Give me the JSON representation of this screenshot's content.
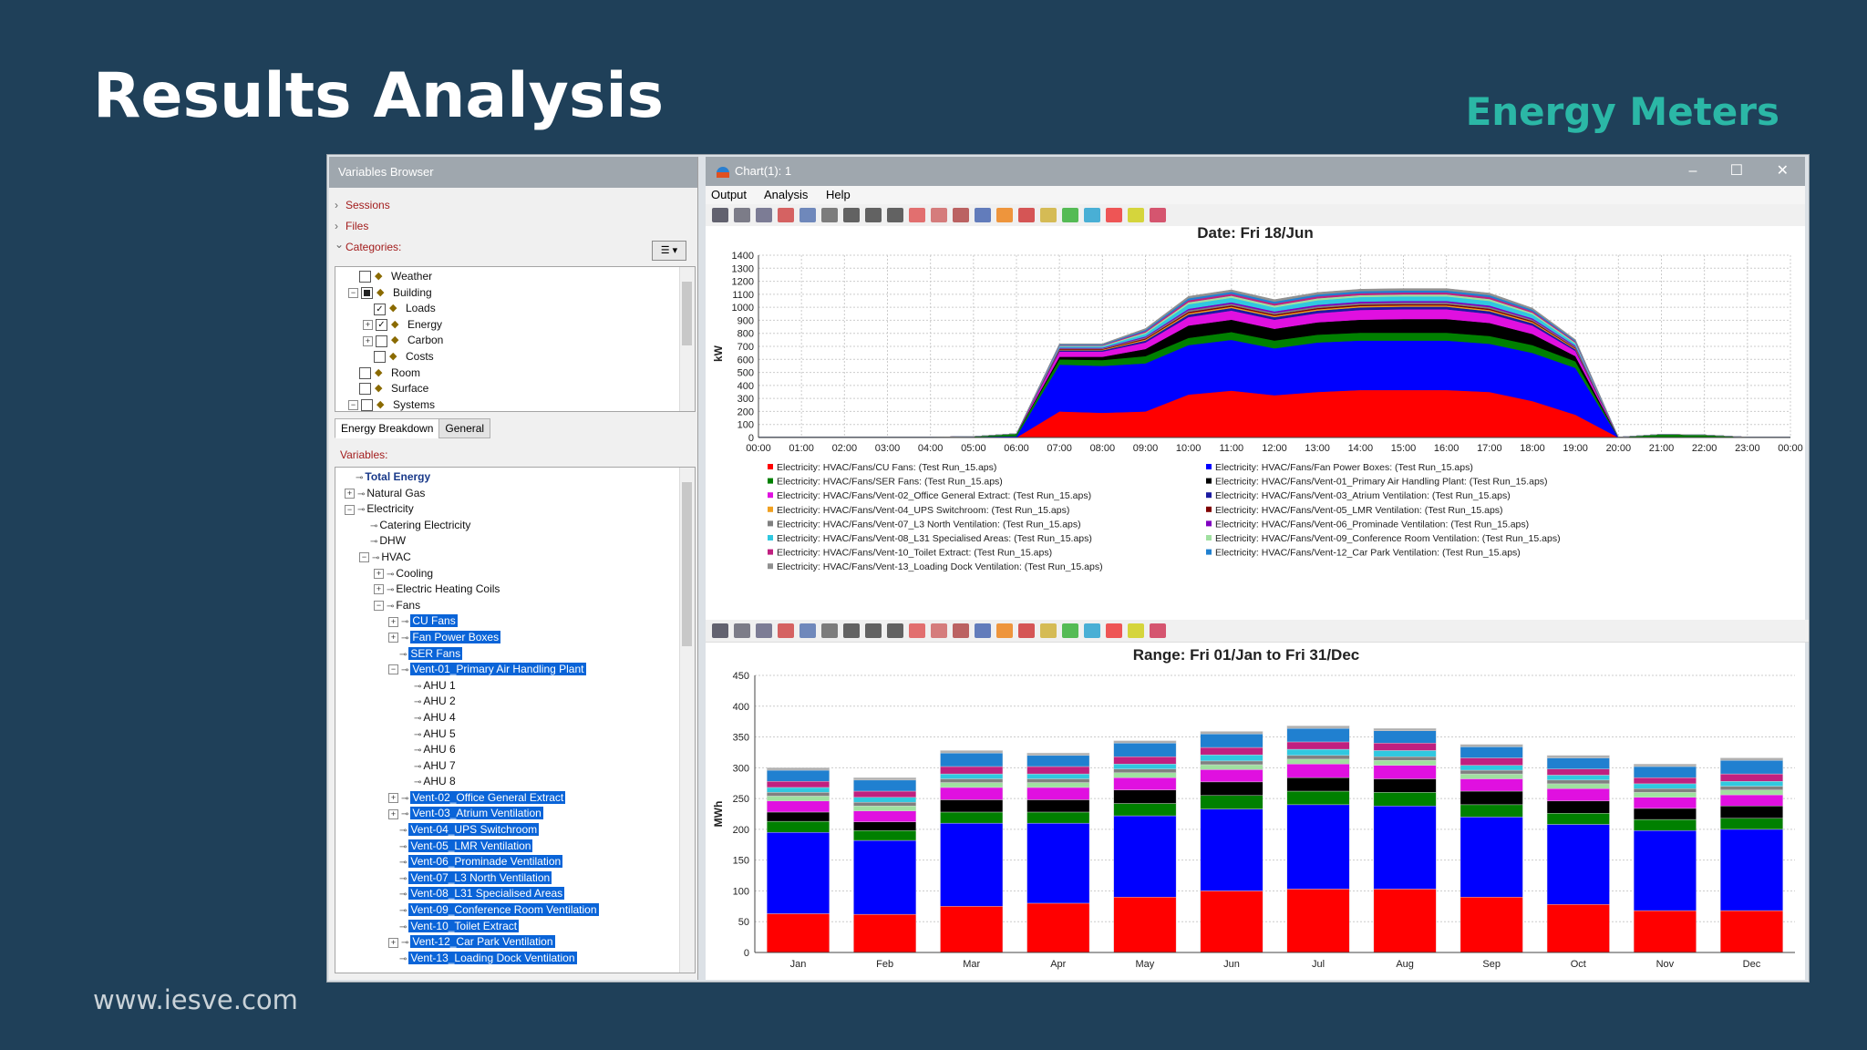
{
  "slide": {
    "title": "Results Analysis",
    "subtitle": "Energy Meters",
    "footer_url": "www.iesve.com"
  },
  "variables_browser": {
    "title": "Variables Browser",
    "sessions_label": "Sessions",
    "files_label": "Files",
    "categories_label": "Categories:",
    "categories": [
      {
        "label": "Weather",
        "indent": 0,
        "checked": "no",
        "expander": ""
      },
      {
        "label": "Building",
        "indent": 0,
        "checked": "partial",
        "expander": "−"
      },
      {
        "label": "Loads",
        "indent": 1,
        "checked": "yes",
        "expander": ""
      },
      {
        "label": "Energy",
        "indent": 1,
        "checked": "yes",
        "expander": "+"
      },
      {
        "label": "Carbon",
        "indent": 1,
        "checked": "no",
        "expander": "+"
      },
      {
        "label": "Costs",
        "indent": 1,
        "checked": "no",
        "expander": ""
      },
      {
        "label": "Room",
        "indent": 0,
        "checked": "no",
        "expander": ""
      },
      {
        "label": "Surface",
        "indent": 0,
        "checked": "no",
        "expander": ""
      },
      {
        "label": "Systems",
        "indent": 0,
        "checked": "no",
        "expander": "−"
      }
    ],
    "tabs": [
      "Energy Breakdown",
      "General"
    ],
    "variables_label": "Variables:",
    "variables": [
      {
        "label": "Total Energy",
        "indent": 0,
        "expander": "",
        "selected": false,
        "bold": true
      },
      {
        "label": "Natural Gas",
        "indent": 0,
        "expander": "+",
        "selected": false
      },
      {
        "label": "Electricity",
        "indent": 0,
        "expander": "−",
        "selected": false
      },
      {
        "label": "Catering Electricity",
        "indent": 1,
        "expander": "",
        "selected": false
      },
      {
        "label": "DHW",
        "indent": 1,
        "expander": "",
        "selected": false
      },
      {
        "label": "HVAC",
        "indent": 1,
        "expander": "−",
        "selected": false
      },
      {
        "label": "Cooling",
        "indent": 2,
        "expander": "+",
        "selected": false
      },
      {
        "label": "Electric Heating Coils",
        "indent": 2,
        "expander": "+",
        "selected": false
      },
      {
        "label": "Fans",
        "indent": 2,
        "expander": "−",
        "selected": false
      },
      {
        "label": "CU Fans",
        "indent": 3,
        "expander": "+",
        "selected": true
      },
      {
        "label": "Fan Power Boxes",
        "indent": 3,
        "expander": "+",
        "selected": true
      },
      {
        "label": "SER Fans",
        "indent": 3,
        "expander": "",
        "selected": true
      },
      {
        "label": "Vent-01_Primary Air Handling Plant",
        "indent": 3,
        "expander": "−",
        "selected": true
      },
      {
        "label": "AHU 1",
        "indent": 4,
        "expander": "",
        "selected": false
      },
      {
        "label": "AHU 2",
        "indent": 4,
        "expander": "",
        "selected": false
      },
      {
        "label": "AHU 4",
        "indent": 4,
        "expander": "",
        "selected": false
      },
      {
        "label": "AHU 5",
        "indent": 4,
        "expander": "",
        "selected": false
      },
      {
        "label": "AHU 6",
        "indent": 4,
        "expander": "",
        "selected": false
      },
      {
        "label": "AHU 7",
        "indent": 4,
        "expander": "",
        "selected": false
      },
      {
        "label": "AHU 8",
        "indent": 4,
        "expander": "",
        "selected": false
      },
      {
        "label": "Vent-02_Office General Extract",
        "indent": 3,
        "expander": "+",
        "selected": true
      },
      {
        "label": "Vent-03_Atrium Ventilation",
        "indent": 3,
        "expander": "+",
        "selected": true
      },
      {
        "label": "Vent-04_UPS Switchroom",
        "indent": 3,
        "expander": "",
        "selected": true
      },
      {
        "label": "Vent-05_LMR Ventilation",
        "indent": 3,
        "expander": "",
        "selected": true
      },
      {
        "label": "Vent-06_Prominade Ventilation",
        "indent": 3,
        "expander": "",
        "selected": true
      },
      {
        "label": "Vent-07_L3 North Ventilation",
        "indent": 3,
        "expander": "",
        "selected": true
      },
      {
        "label": "Vent-08_L31 Specialised Areas",
        "indent": 3,
        "expander": "",
        "selected": true
      },
      {
        "label": "Vent-09_Conference Room Ventilation",
        "indent": 3,
        "expander": "",
        "selected": true
      },
      {
        "label": "Vent-10_Toilet Extract",
        "indent": 3,
        "expander": "",
        "selected": true
      },
      {
        "label": "Vent-12_Car Park Ventilation",
        "indent": 3,
        "expander": "+",
        "selected": true
      },
      {
        "label": "Vent-13_Loading Dock Ventilation",
        "indent": 3,
        "expander": "",
        "selected": true
      }
    ]
  },
  "chart_window": {
    "title": "Chart(1): 1",
    "menu": [
      "Output",
      "Analysis",
      "Help"
    ]
  },
  "chart_data": [
    {
      "type": "area",
      "title": "Date: Fri 18/Jun",
      "ylabel": "kW",
      "xlabel": "",
      "ylim": [
        0,
        1400
      ],
      "yticks": [
        0,
        100,
        200,
        300,
        400,
        500,
        600,
        700,
        800,
        900,
        1000,
        1100,
        1200,
        1300,
        1400
      ],
      "x": [
        "00:00",
        "01:00",
        "02:00",
        "03:00",
        "04:00",
        "05:00",
        "06:00",
        "07:00",
        "08:00",
        "09:00",
        "10:00",
        "11:00",
        "12:00",
        "13:00",
        "14:00",
        "15:00",
        "16:00",
        "17:00",
        "18:00",
        "19:00",
        "20:00",
        "21:00",
        "22:00",
        "23:00",
        "00:00"
      ],
      "stacked": true,
      "grid": true,
      "series": [
        {
          "name": "Electricity: HVAC/Fans/CU Fans:  (Test Run_15.aps)",
          "color": "#ff0000",
          "values": [
            0,
            0,
            0,
            0,
            0,
            0,
            0,
            200,
            190,
            200,
            330,
            360,
            325,
            350,
            365,
            365,
            365,
            350,
            280,
            175,
            0,
            0,
            0,
            0,
            0
          ]
        },
        {
          "name": "Electricity: HVAC/Fans/Fan Power Boxes:  (Test Run_15.aps)",
          "color": "#0000ff",
          "values": [
            0,
            0,
            0,
            0,
            0,
            5,
            10,
            360,
            360,
            370,
            380,
            390,
            360,
            380,
            380,
            380,
            380,
            370,
            370,
            360,
            0,
            5,
            5,
            0,
            0
          ]
        },
        {
          "name": "Electricity: HVAC/Fans/SER Fans:  (Test Run_15.aps)",
          "color": "#008000",
          "values": [
            3,
            3,
            3,
            3,
            3,
            3,
            20,
            40,
            45,
            55,
            55,
            60,
            60,
            60,
            60,
            60,
            60,
            60,
            60,
            50,
            3,
            20,
            15,
            3,
            3
          ]
        },
        {
          "name": "Electricity: HVAC/Fans/Vent-01_Primary Air Handling Plant:  (Test Run_15.aps)",
          "color": "#000000",
          "values": [
            0,
            0,
            0,
            0,
            0,
            0,
            0,
            20,
            25,
            55,
            95,
            95,
            90,
            95,
            100,
            105,
            105,
            100,
            85,
            40,
            0,
            0,
            0,
            0,
            0
          ]
        },
        {
          "name": "Electricity: HVAC/Fans/Vent-02_Office General Extract:  (Test Run_15.aps)",
          "color": "#e010e0",
          "values": [
            0,
            0,
            0,
            0,
            0,
            0,
            0,
            40,
            40,
            50,
            65,
            70,
            70,
            70,
            75,
            75,
            75,
            70,
            65,
            40,
            0,
            0,
            0,
            0,
            0
          ]
        },
        {
          "name": "Electricity: HVAC/Fans/Vent-03_Atrium Ventilation:  (Test Run_15.aps)",
          "color": "#1a1aa0",
          "values": [
            0,
            0,
            0,
            0,
            0,
            0,
            0,
            10,
            10,
            15,
            20,
            20,
            20,
            20,
            20,
            20,
            20,
            20,
            18,
            12,
            0,
            0,
            0,
            0,
            0
          ]
        },
        {
          "name": "Electricity: HVAC/Fans/Vent-04_UPS Switchroom:  (Test Run_15.aps)",
          "color": "#f0a020",
          "values": [
            0,
            0,
            0,
            0,
            0,
            0,
            0,
            5,
            5,
            8,
            10,
            10,
            10,
            10,
            10,
            10,
            10,
            10,
            9,
            6,
            0,
            0,
            0,
            0,
            0
          ]
        },
        {
          "name": "Electricity: HVAC/Fans/Vent-05_LMR Ventilation:  (Test Run_15.aps)",
          "color": "#800000",
          "values": [
            0,
            0,
            0,
            0,
            0,
            0,
            0,
            5,
            5,
            8,
            10,
            10,
            10,
            10,
            10,
            10,
            10,
            10,
            9,
            6,
            0,
            0,
            0,
            0,
            0
          ]
        },
        {
          "name": "Electricity: HVAC/Fans/Vent-07_L3 North Ventilation:  (Test Run_15.aps)",
          "color": "#808080",
          "values": [
            0,
            0,
            0,
            0,
            0,
            0,
            0,
            5,
            5,
            8,
            12,
            12,
            12,
            12,
            12,
            12,
            12,
            12,
            10,
            8,
            0,
            0,
            0,
            0,
            0
          ]
        },
        {
          "name": "Electricity: HVAC/Fans/Vent-06_Prominade Ventilation:  (Test Run_15.aps)",
          "color": "#8000c0",
          "values": [
            0,
            0,
            0,
            0,
            0,
            0,
            0,
            5,
            5,
            8,
            12,
            12,
            12,
            12,
            12,
            12,
            12,
            12,
            10,
            8,
            0,
            0,
            0,
            0,
            0
          ]
        },
        {
          "name": "Electricity: HVAC/Fans/Vent-08_L31 Specialised Areas:  (Test Run_15.aps)",
          "color": "#30c8e0",
          "values": [
            0,
            0,
            0,
            0,
            0,
            0,
            0,
            10,
            10,
            20,
            35,
            35,
            30,
            35,
            35,
            35,
            35,
            35,
            30,
            15,
            0,
            0,
            0,
            0,
            0
          ]
        },
        {
          "name": "Electricity: HVAC/Fans/Vent-09_Conference Room Ventilation:  (Test Run_15.aps)",
          "color": "#a0e0a0",
          "values": [
            0,
            0,
            0,
            0,
            0,
            0,
            0,
            5,
            5,
            10,
            15,
            15,
            15,
            15,
            15,
            15,
            15,
            15,
            12,
            8,
            0,
            0,
            0,
            0,
            0
          ]
        },
        {
          "name": "Electricity: HVAC/Fans/Vent-10_Toilet Extract:  (Test Run_15.aps)",
          "color": "#c02080",
          "values": [
            0,
            0,
            0,
            0,
            0,
            0,
            0,
            5,
            5,
            10,
            15,
            15,
            15,
            15,
            15,
            15,
            15,
            15,
            12,
            8,
            0,
            0,
            0,
            0,
            0
          ]
        },
        {
          "name": "Electricity: HVAC/Fans/Vent-12_Car Park Ventilation:  (Test Run_15.aps)",
          "color": "#2080d0",
          "values": [
            0,
            0,
            0,
            0,
            0,
            0,
            0,
            5,
            5,
            10,
            15,
            15,
            15,
            15,
            15,
            15,
            15,
            15,
            12,
            8,
            0,
            0,
            0,
            0,
            0
          ]
        },
        {
          "name": "Electricity: HVAC/Fans/Vent-13_Loading Dock Ventilation:  (Test Run_15.aps)",
          "color": "#909090",
          "values": [
            0,
            0,
            0,
            0,
            0,
            0,
            0,
            5,
            5,
            10,
            15,
            15,
            15,
            15,
            15,
            15,
            15,
            15,
            12,
            8,
            0,
            0,
            0,
            0,
            0
          ]
        }
      ]
    },
    {
      "type": "bar",
      "title": "Range: Fri 01/Jan to Fri 31/Dec",
      "ylabel": "MWh",
      "xlabel": "",
      "ylim": [
        0,
        450
      ],
      "yticks": [
        0,
        50,
        100,
        150,
        200,
        250,
        300,
        350,
        400,
        450
      ],
      "categories": [
        "Jan",
        "Feb",
        "Mar",
        "Apr",
        "May",
        "Jun",
        "Jul",
        "Aug",
        "Sep",
        "Oct",
        "Nov",
        "Dec"
      ],
      "stacked": true,
      "grid": true,
      "series": [
        {
          "name": "CU Fans",
          "color": "#ff0000",
          "values": [
            63,
            62,
            75,
            80,
            90,
            100,
            103,
            103,
            90,
            78,
            68,
            68
          ]
        },
        {
          "name": "Fan Power Boxes",
          "color": "#0000ff",
          "values": [
            132,
            120,
            135,
            130,
            132,
            133,
            137,
            135,
            130,
            130,
            130,
            132
          ]
        },
        {
          "name": "SER Fans",
          "color": "#008000",
          "values": [
            18,
            16,
            18,
            18,
            20,
            22,
            22,
            22,
            20,
            18,
            18,
            18
          ]
        },
        {
          "name": "Vent-01_Primary Air Handling Plant",
          "color": "#000000",
          "values": [
            15,
            14,
            20,
            20,
            22,
            22,
            22,
            22,
            22,
            20,
            18,
            20
          ]
        },
        {
          "name": "Vent-02_Office General Extract",
          "color": "#e010e0",
          "values": [
            18,
            18,
            20,
            20,
            20,
            20,
            22,
            22,
            20,
            20,
            18,
            18
          ]
        },
        {
          "name": "Vent-09_Conference Room Ventilation",
          "color": "#a0e0a0",
          "values": [
            8,
            8,
            8,
            8,
            8,
            8,
            8,
            8,
            8,
            8,
            8,
            8
          ]
        },
        {
          "name": "Vent-07_L3 North Ventilation",
          "color": "#808080",
          "values": [
            6,
            6,
            6,
            6,
            6,
            6,
            6,
            6,
            6,
            6,
            6,
            6
          ]
        },
        {
          "name": "Vent-08_L31 Specialised Areas",
          "color": "#30c8e0",
          "values": [
            8,
            8,
            8,
            8,
            8,
            10,
            10,
            10,
            8,
            8,
            8,
            8
          ]
        },
        {
          "name": "Vent-10_Toilet Extract",
          "color": "#c02080",
          "values": [
            10,
            10,
            12,
            12,
            12,
            12,
            12,
            12,
            12,
            10,
            10,
            12
          ]
        },
        {
          "name": "Vent-12_Car Park Ventilation",
          "color": "#2080d0",
          "values": [
            18,
            18,
            22,
            18,
            22,
            22,
            22,
            20,
            18,
            18,
            18,
            22
          ]
        },
        {
          "name": "Vent-13_Loading Dock Ventilation",
          "color": "#b0b0b0",
          "values": [
            4,
            4,
            4,
            4,
            4,
            4,
            4,
            4,
            4,
            4,
            4,
            4
          ]
        }
      ]
    }
  ]
}
